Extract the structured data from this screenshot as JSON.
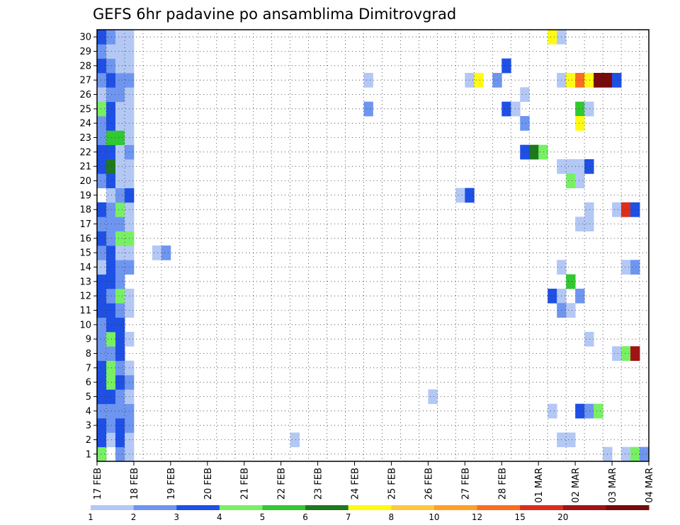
{
  "chart_data": {
    "type": "heatmap",
    "title": "GEFS 6hr padavine po ansamblima Dimitrovgrad",
    "x_tick_labels": [
      "17 FEB",
      "18 FEB",
      "19 FEB",
      "20 FEB",
      "21 FEB",
      "22 FEB",
      "23 FEB",
      "24 FEB",
      "25 FEB",
      "26 FEB",
      "27 FEB",
      "28 FEB",
      "01 MAR",
      "02 MAR",
      "03 MAR",
      "04 MAR"
    ],
    "y_tick_labels": [
      "1",
      "2",
      "3",
      "4",
      "5",
      "6",
      "7",
      "8",
      "9",
      "10",
      "11",
      "12",
      "13",
      "14",
      "15",
      "16",
      "17",
      "18",
      "19",
      "20",
      "21",
      "22",
      "23",
      "24",
      "25",
      "26",
      "27",
      "28",
      "29",
      "30"
    ],
    "time_steps_6h": 60,
    "grid": true,
    "colorbar": {
      "labels": [
        "1",
        "2",
        "3",
        "4",
        "5",
        "6",
        "7",
        "8",
        "10",
        "12",
        "15",
        "20"
      ],
      "colors": [
        "#b4c8f5",
        "#6e96f0",
        "#1e50e6",
        "#78f064",
        "#32c832",
        "#1e781e",
        "#fffa14",
        "#ffc83c",
        "#ffa028",
        "#fa6e1e",
        "#dc2d1e",
        "#a01414",
        "#780a0a"
      ]
    },
    "note_cells": "each cell: [member, step, color_index]; step 0 = 17 FEB 00h, 6h per step",
    "cells": [
      [
        1,
        0,
        3
      ],
      [
        1,
        2,
        1
      ],
      [
        1,
        3,
        0
      ],
      [
        2,
        0,
        2
      ],
      [
        2,
        1,
        0
      ],
      [
        2,
        2,
        2
      ],
      [
        2,
        3,
        0
      ],
      [
        3,
        0,
        2
      ],
      [
        3,
        1,
        1
      ],
      [
        3,
        2,
        2
      ],
      [
        3,
        3,
        1
      ],
      [
        4,
        0,
        1
      ],
      [
        4,
        1,
        1
      ],
      [
        4,
        2,
        1
      ],
      [
        4,
        3,
        1
      ],
      [
        5,
        0,
        2
      ],
      [
        5,
        1,
        2
      ],
      [
        5,
        2,
        1
      ],
      [
        5,
        3,
        0
      ],
      [
        6,
        0,
        2
      ],
      [
        6,
        1,
        3
      ],
      [
        6,
        2,
        2
      ],
      [
        6,
        3,
        1
      ],
      [
        7,
        0,
        2
      ],
      [
        7,
        1,
        3
      ],
      [
        7,
        2,
        1
      ],
      [
        7,
        3,
        0
      ],
      [
        8,
        0,
        1
      ],
      [
        8,
        1,
        1
      ],
      [
        8,
        2,
        2
      ],
      [
        9,
        0,
        1
      ],
      [
        9,
        1,
        3
      ],
      [
        9,
        2,
        2
      ],
      [
        9,
        3,
        0
      ],
      [
        10,
        0,
        1
      ],
      [
        10,
        1,
        2
      ],
      [
        10,
        2,
        2
      ],
      [
        11,
        0,
        2
      ],
      [
        11,
        1,
        2
      ],
      [
        11,
        2,
        1
      ],
      [
        11,
        3,
        0
      ],
      [
        12,
        0,
        2
      ],
      [
        12,
        1,
        1
      ],
      [
        12,
        2,
        3
      ],
      [
        12,
        3,
        0
      ],
      [
        13,
        0,
        2
      ],
      [
        13,
        1,
        2
      ],
      [
        13,
        2,
        1
      ],
      [
        14,
        0,
        0
      ],
      [
        14,
        1,
        2
      ],
      [
        14,
        2,
        1
      ],
      [
        14,
        3,
        1
      ],
      [
        15,
        0,
        1
      ],
      [
        15,
        1,
        2
      ],
      [
        15,
        2,
        0
      ],
      [
        15,
        3,
        0
      ],
      [
        16,
        0,
        2
      ],
      [
        16,
        1,
        1
      ],
      [
        16,
        2,
        3
      ],
      [
        16,
        3,
        3
      ],
      [
        17,
        0,
        1
      ],
      [
        17,
        1,
        1
      ],
      [
        17,
        2,
        1
      ],
      [
        17,
        3,
        0
      ],
      [
        18,
        0,
        2
      ],
      [
        18,
        1,
        1
      ],
      [
        18,
        2,
        3
      ],
      [
        18,
        3,
        0
      ],
      [
        19,
        1,
        0
      ],
      [
        19,
        2,
        1
      ],
      [
        19,
        3,
        2
      ],
      [
        20,
        0,
        1
      ],
      [
        20,
        1,
        2
      ],
      [
        20,
        2,
        0
      ],
      [
        20,
        3,
        0
      ],
      [
        21,
        0,
        2
      ],
      [
        21,
        1,
        5
      ],
      [
        21,
        2,
        0
      ],
      [
        21,
        3,
        0
      ],
      [
        22,
        0,
        2
      ],
      [
        22,
        1,
        2
      ],
      [
        22,
        2,
        0
      ],
      [
        22,
        3,
        1
      ],
      [
        23,
        0,
        1
      ],
      [
        23,
        1,
        4
      ],
      [
        23,
        2,
        4
      ],
      [
        23,
        3,
        0
      ],
      [
        24,
        0,
        1
      ],
      [
        24,
        1,
        2
      ],
      [
        24,
        2,
        0
      ],
      [
        24,
        3,
        0
      ],
      [
        25,
        0,
        3
      ],
      [
        25,
        1,
        2
      ],
      [
        25,
        2,
        0
      ],
      [
        25,
        3,
        0
      ],
      [
        26,
        0,
        0
      ],
      [
        26,
        1,
        1
      ],
      [
        26,
        2,
        1
      ],
      [
        26,
        3,
        0
      ],
      [
        27,
        0,
        1
      ],
      [
        27,
        1,
        2
      ],
      [
        27,
        2,
        1
      ],
      [
        27,
        3,
        1
      ],
      [
        28,
        0,
        2
      ],
      [
        28,
        1,
        1
      ],
      [
        28,
        2,
        0
      ],
      [
        28,
        3,
        0
      ],
      [
        29,
        0,
        1
      ],
      [
        29,
        1,
        0
      ],
      [
        29,
        2,
        0
      ],
      [
        29,
        3,
        0
      ],
      [
        30,
        0,
        2
      ],
      [
        30,
        1,
        1
      ],
      [
        30,
        2,
        0
      ],
      [
        30,
        3,
        0
      ],
      [
        15,
        6,
        0
      ],
      [
        15,
        7,
        1
      ],
      [
        2,
        21,
        0
      ],
      [
        27,
        29,
        0
      ],
      [
        25,
        29,
        1
      ],
      [
        5,
        36,
        0
      ],
      [
        19,
        39,
        0
      ],
      [
        19,
        40,
        2
      ],
      [
        27,
        40,
        0
      ],
      [
        27,
        41,
        6
      ],
      [
        27,
        43,
        1
      ],
      [
        28,
        44,
        2
      ],
      [
        25,
        44,
        2
      ],
      [
        25,
        45,
        0
      ],
      [
        26,
        46,
        0
      ],
      [
        24,
        46,
        1
      ],
      [
        22,
        46,
        2
      ],
      [
        22,
        47,
        5
      ],
      [
        22,
        48,
        3
      ],
      [
        30,
        49,
        6
      ],
      [
        30,
        50,
        0
      ],
      [
        27,
        50,
        0
      ],
      [
        27,
        51,
        6
      ],
      [
        27,
        52,
        9
      ],
      [
        27,
        53,
        6
      ],
      [
        27,
        54,
        12
      ],
      [
        27,
        55,
        12
      ],
      [
        27,
        56,
        2
      ],
      [
        25,
        52,
        4
      ],
      [
        25,
        53,
        0
      ],
      [
        24,
        52,
        6
      ],
      [
        21,
        50,
        0
      ],
      [
        21,
        51,
        0
      ],
      [
        21,
        52,
        0
      ],
      [
        21,
        53,
        2
      ],
      [
        20,
        51,
        3
      ],
      [
        20,
        52,
        0
      ],
      [
        18,
        53,
        0
      ],
      [
        18,
        56,
        0
      ],
      [
        18,
        57,
        10
      ],
      [
        18,
        58,
        2
      ],
      [
        17,
        52,
        0
      ],
      [
        17,
        53,
        0
      ],
      [
        14,
        50,
        0
      ],
      [
        14,
        57,
        0
      ],
      [
        14,
        58,
        1
      ],
      [
        13,
        51,
        4
      ],
      [
        12,
        49,
        2
      ],
      [
        12,
        50,
        0
      ],
      [
        12,
        52,
        1
      ],
      [
        11,
        50,
        1
      ],
      [
        11,
        51,
        0
      ],
      [
        9,
        53,
        0
      ],
      [
        8,
        56,
        0
      ],
      [
        8,
        57,
        3
      ],
      [
        8,
        58,
        11
      ],
      [
        4,
        49,
        0
      ],
      [
        4,
        52,
        2
      ],
      [
        4,
        53,
        1
      ],
      [
        4,
        54,
        3
      ],
      [
        2,
        50,
        0
      ],
      [
        2,
        51,
        0
      ],
      [
        1,
        55,
        0
      ],
      [
        1,
        57,
        0
      ],
      [
        1,
        58,
        3
      ],
      [
        1,
        59,
        1
      ]
    ]
  }
}
